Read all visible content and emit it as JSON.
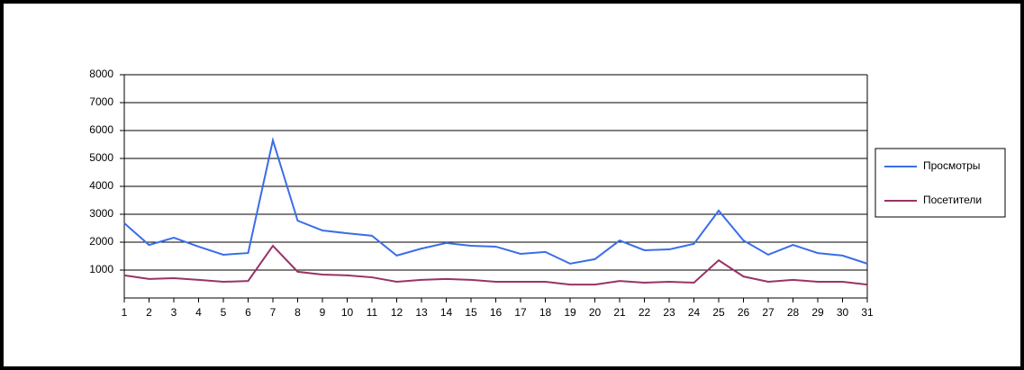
{
  "chart_data": {
    "type": "line",
    "categories": [
      "1",
      "2",
      "3",
      "4",
      "5",
      "6",
      "7",
      "8",
      "9",
      "10",
      "11",
      "12",
      "13",
      "14",
      "15",
      "16",
      "17",
      "18",
      "19",
      "20",
      "21",
      "22",
      "23",
      "24",
      "25",
      "26",
      "27",
      "28",
      "29",
      "30",
      "31"
    ],
    "series": [
      {
        "name": "Просмотры",
        "color": "#3a6ee8",
        "values": [
          2680,
          1900,
          2160,
          1840,
          1550,
          1610,
          5650,
          2770,
          2420,
          2320,
          2230,
          1520,
          1770,
          1970,
          1870,
          1840,
          1580,
          1650,
          1230,
          1390,
          2060,
          1710,
          1740,
          1940,
          3130,
          2060,
          1550,
          1900,
          1610,
          1520,
          1230
        ]
      },
      {
        "name": "Посетители",
        "color": "#993366",
        "values": [
          810,
          680,
          710,
          650,
          580,
          610,
          1870,
          940,
          840,
          810,
          740,
          580,
          650,
          680,
          650,
          580,
          580,
          580,
          480,
          480,
          610,
          550,
          580,
          550,
          1350,
          770,
          580,
          650,
          580,
          580,
          480
        ]
      }
    ],
    "ylim": [
      0,
      8000
    ],
    "yticks": [
      1000,
      2000,
      3000,
      4000,
      5000,
      6000,
      7000,
      8000
    ],
    "grid": true,
    "legend": "right"
  }
}
